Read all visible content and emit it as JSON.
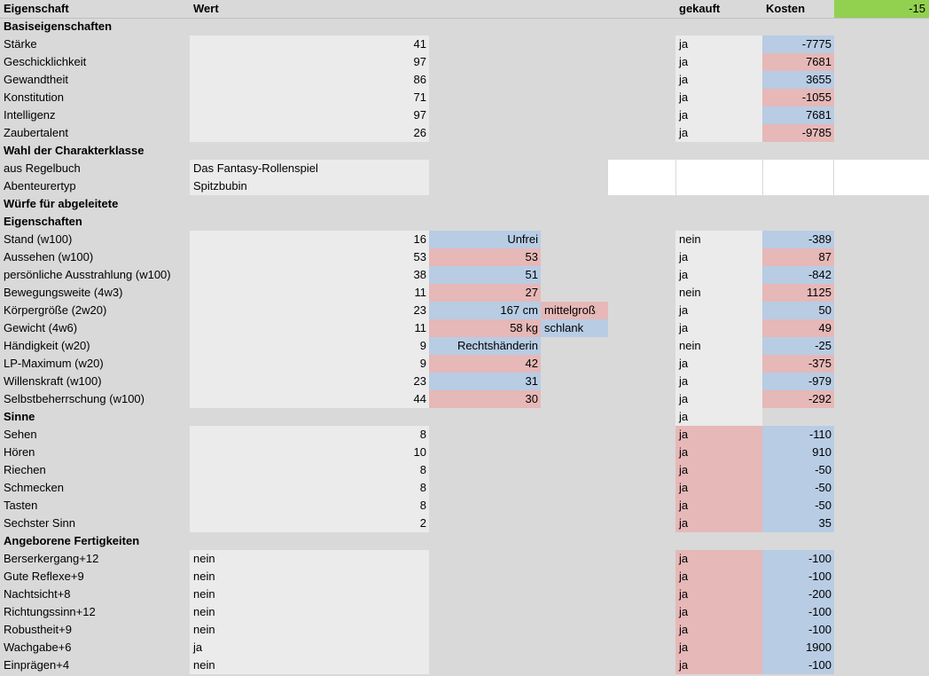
{
  "header": {
    "eigenschaft": "Eigenschaft",
    "wert": "Wert",
    "gekauft": "gekauft",
    "kosten": "Kosten",
    "total": "-15"
  },
  "colors": {
    "blue": "#b8cce4",
    "red": "#e6b8b7",
    "grey": "#ebebeb",
    "green": "#92d050",
    "bg": "#d9d9d9"
  },
  "rows": [
    {
      "label": "Basiseigenschaften",
      "section": true
    },
    {
      "label": "Stärke",
      "wert": "41",
      "gekauft": "ja",
      "kosten": "-7775",
      "kbg": "blue"
    },
    {
      "label": "Geschicklichkeit",
      "wert": "97",
      "gekauft": "ja",
      "kosten": "7681",
      "kbg": "red"
    },
    {
      "label": "Gewandtheit",
      "wert": "86",
      "gekauft": "ja",
      "kosten": "3655",
      "kbg": "blue"
    },
    {
      "label": "Konstitution",
      "wert": "71",
      "gekauft": "ja",
      "kosten": "-1055",
      "kbg": "red"
    },
    {
      "label": "Intelligenz",
      "wert": "97",
      "gekauft": "ja",
      "kosten": "7681",
      "kbg": "blue"
    },
    {
      "label": "Zaubertalent",
      "wert": "26",
      "gekauft": "ja",
      "kosten": "-9785",
      "kbg": "red"
    },
    {
      "label": "Wahl der Charakterklasse",
      "section": true
    },
    {
      "label": "aus Regelbuch",
      "text": "Das Fantasy-Rollenspiel",
      "white": true
    },
    {
      "label": "Abenteurertyp",
      "text": "Spitzbubin",
      "white": true
    },
    {
      "label": "Würfe für abgeleitete",
      "section": true
    },
    {
      "label": "Eigenschaften",
      "section": true
    },
    {
      "label": "Stand (w100)",
      "wert": "16",
      "d": "Unfrei",
      "dbg": "blue",
      "gekauft": "nein",
      "kosten": "-389",
      "kbg": "blue"
    },
    {
      "label": "Aussehen (w100)",
      "wert": "53",
      "d": "53",
      "dbg": "red",
      "gekauft": "ja",
      "kosten": "87",
      "kbg": "red"
    },
    {
      "label": "persönliche Ausstrahlung (w100)",
      "wert": "38",
      "d": "51",
      "dbg": "blue",
      "gekauft": "ja",
      "kosten": "-842",
      "kbg": "blue"
    },
    {
      "label": "Bewegungsweite (4w3)",
      "wert": "11",
      "d": "27",
      "dbg": "red",
      "gekauft": "nein",
      "kosten": "1125",
      "kbg": "red"
    },
    {
      "label": "Körpergröße (2w20)",
      "wert": "23",
      "d": "167 cm",
      "dbg": "blue",
      "e": "mittelgroß",
      "ebg": "red",
      "gekauft": "ja",
      "kosten": "50",
      "kbg": "blue"
    },
    {
      "label": "Gewicht (4w6)",
      "wert": "11",
      "d": "58 kg",
      "dbg": "red",
      "e": "schlank",
      "ebg": "blue",
      "gekauft": "ja",
      "kosten": "49",
      "kbg": "red"
    },
    {
      "label": "Händigkeit (w20)",
      "wert": "9",
      "d": "Rechtshänderin",
      "dbg": "blue",
      "gekauft": "nein",
      "kosten": "-25",
      "kbg": "blue"
    },
    {
      "label": "LP-Maximum (w20)",
      "wert": "9",
      "d": "42",
      "dbg": "red",
      "gekauft": "ja",
      "kosten": "-375",
      "kbg": "red"
    },
    {
      "label": "Willenskraft (w100)",
      "wert": "23",
      "d": "31",
      "dbg": "blue",
      "gekauft": "ja",
      "kosten": "-979",
      "kbg": "blue"
    },
    {
      "label": "Selbstbeherrschung (w100)",
      "wert": "44",
      "d": "30",
      "dbg": "red",
      "gekauft": "ja",
      "kosten": "-292",
      "kbg": "red"
    },
    {
      "label": "Sinne",
      "section": true,
      "gekauft": "ja"
    },
    {
      "label": "Sehen",
      "wert": "8",
      "gekauft": "ja",
      "gbg": "red",
      "kosten": "-110",
      "kbg": "blue"
    },
    {
      "label": "Hören",
      "wert": "10",
      "gekauft": "ja",
      "gbg": "red",
      "kosten": "910",
      "kbg": "blue"
    },
    {
      "label": "Riechen",
      "wert": "8",
      "gekauft": "ja",
      "gbg": "red",
      "kosten": "-50",
      "kbg": "blue"
    },
    {
      "label": "Schmecken",
      "wert": "8",
      "gekauft": "ja",
      "gbg": "red",
      "kosten": "-50",
      "kbg": "blue"
    },
    {
      "label": "Tasten",
      "wert": "8",
      "gekauft": "ja",
      "gbg": "red",
      "kosten": "-50",
      "kbg": "blue"
    },
    {
      "label": "Sechster Sinn",
      "wert": "2",
      "gekauft": "ja",
      "gbg": "red",
      "kosten": "35",
      "kbg": "blue"
    },
    {
      "label": "Angeborene Fertigkeiten",
      "section": true
    },
    {
      "label": "Berserkergang+12",
      "text": "nein",
      "gekauft": "ja",
      "gbg": "red",
      "kosten": "-100",
      "kbg": "blue"
    },
    {
      "label": "Gute Reflexe+9",
      "text": "nein",
      "gekauft": "ja",
      "gbg": "red",
      "kosten": "-100",
      "kbg": "blue"
    },
    {
      "label": "Nachtsicht+8",
      "text": "nein",
      "gekauft": "ja",
      "gbg": "red",
      "kosten": "-200",
      "kbg": "blue"
    },
    {
      "label": "Richtungssinn+12",
      "text": "nein",
      "gekauft": "ja",
      "gbg": "red",
      "kosten": "-100",
      "kbg": "blue"
    },
    {
      "label": "Robustheit+9",
      "text": "nein",
      "gekauft": "ja",
      "gbg": "red",
      "kosten": "-100",
      "kbg": "blue"
    },
    {
      "label": "Wachgabe+6",
      "text": "ja",
      "gekauft": "ja",
      "gbg": "red",
      "kosten": "1900",
      "kbg": "blue"
    },
    {
      "label": "Einprägen+4",
      "text": "nein",
      "gekauft": "ja",
      "gbg": "red",
      "kosten": "-100",
      "kbg": "blue"
    }
  ]
}
